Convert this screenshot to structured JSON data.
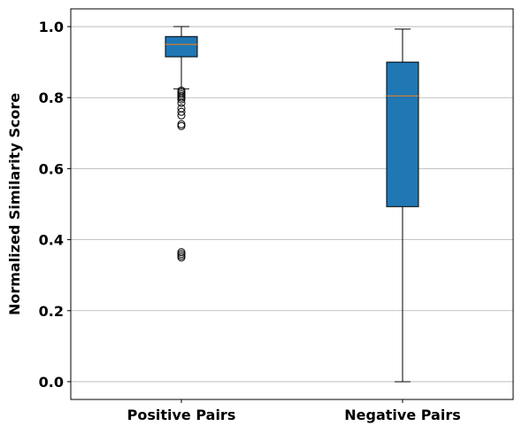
{
  "chart_data": {
    "type": "box",
    "ylabel": "Normalized Similarity Score",
    "xlabel": "",
    "ylim": [
      -0.05,
      1.05
    ],
    "yticks": [
      0.0,
      0.2,
      0.4,
      0.6,
      0.8,
      1.0
    ],
    "ytick_labels": [
      "0.0",
      "0.2",
      "0.4",
      "0.6",
      "0.8",
      "1.0"
    ],
    "grid": "horizontal",
    "box_color": "#1f77b4",
    "median_color": "#ff7f0e",
    "categories": [
      "Positive Pairs",
      "Negative Pairs"
    ],
    "boxes": [
      {
        "name": "Positive Pairs",
        "whisker_low": 0.825,
        "q1": 0.915,
        "median": 0.95,
        "q3": 0.972,
        "whisker_high": 1.0,
        "outliers": [
          0.82,
          0.815,
          0.81,
          0.805,
          0.8,
          0.795,
          0.785,
          0.77,
          0.76,
          0.75,
          0.725,
          0.72,
          0.365,
          0.36,
          0.355,
          0.35
        ]
      },
      {
        "name": "Negative Pairs",
        "whisker_low": 0.0,
        "q1": 0.493,
        "median": 0.805,
        "q3": 0.9,
        "whisker_high": 0.993,
        "outliers": []
      }
    ]
  }
}
